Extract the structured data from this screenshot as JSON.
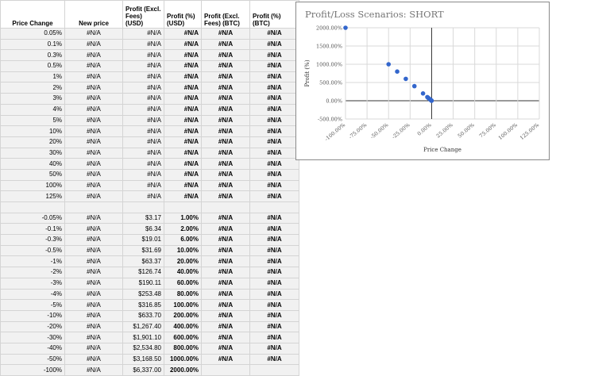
{
  "sheet": {
    "headers": [
      "Price Change",
      "New price",
      "Profit (Excl. Fees) (USD)",
      "Profit (%) (USD)",
      "Profit (Excl. Fees) (BTC)",
      "Profit (%) (BTC)"
    ],
    "rows": [
      [
        "0.05%",
        "#N/A",
        "#N/A",
        "#N/A",
        "#N/A",
        "#N/A"
      ],
      [
        "0.1%",
        "#N/A",
        "#N/A",
        "#N/A",
        "#N/A",
        "#N/A"
      ],
      [
        "0.3%",
        "#N/A",
        "#N/A",
        "#N/A",
        "#N/A",
        "#N/A"
      ],
      [
        "0.5%",
        "#N/A",
        "#N/A",
        "#N/A",
        "#N/A",
        "#N/A"
      ],
      [
        "1%",
        "#N/A",
        "#N/A",
        "#N/A",
        "#N/A",
        "#N/A"
      ],
      [
        "2%",
        "#N/A",
        "#N/A",
        "#N/A",
        "#N/A",
        "#N/A"
      ],
      [
        "3%",
        "#N/A",
        "#N/A",
        "#N/A",
        "#N/A",
        "#N/A"
      ],
      [
        "4%",
        "#N/A",
        "#N/A",
        "#N/A",
        "#N/A",
        "#N/A"
      ],
      [
        "5%",
        "#N/A",
        "#N/A",
        "#N/A",
        "#N/A",
        "#N/A"
      ],
      [
        "10%",
        "#N/A",
        "#N/A",
        "#N/A",
        "#N/A",
        "#N/A"
      ],
      [
        "20%",
        "#N/A",
        "#N/A",
        "#N/A",
        "#N/A",
        "#N/A"
      ],
      [
        "30%",
        "#N/A",
        "#N/A",
        "#N/A",
        "#N/A",
        "#N/A"
      ],
      [
        "40%",
        "#N/A",
        "#N/A",
        "#N/A",
        "#N/A",
        "#N/A"
      ],
      [
        "50%",
        "#N/A",
        "#N/A",
        "#N/A",
        "#N/A",
        "#N/A"
      ],
      [
        "100%",
        "#N/A",
        "#N/A",
        "#N/A",
        "#N/A",
        "#N/A"
      ],
      [
        "125%",
        "#N/A",
        "#N/A",
        "#N/A",
        "#N/A",
        "#N/A"
      ],
      [
        "",
        "",
        "",
        "",
        "",
        ""
      ],
      [
        "-0.05%",
        "#N/A",
        "$3.17",
        "1.00%",
        "#N/A",
        "#N/A"
      ],
      [
        "-0.1%",
        "#N/A",
        "$6.34",
        "2.00%",
        "#N/A",
        "#N/A"
      ],
      [
        "-0.3%",
        "#N/A",
        "$19.01",
        "6.00%",
        "#N/A",
        "#N/A"
      ],
      [
        "-0.5%",
        "#N/A",
        "$31.69",
        "10.00%",
        "#N/A",
        "#N/A"
      ],
      [
        "-1%",
        "#N/A",
        "$63.37",
        "20.00%",
        "#N/A",
        "#N/A"
      ],
      [
        "-2%",
        "#N/A",
        "$126.74",
        "40.00%",
        "#N/A",
        "#N/A"
      ],
      [
        "-3%",
        "#N/A",
        "$190.11",
        "60.00%",
        "#N/A",
        "#N/A"
      ],
      [
        "-4%",
        "#N/A",
        "$253.48",
        "80.00%",
        "#N/A",
        "#N/A"
      ],
      [
        "-5%",
        "#N/A",
        "$316.85",
        "100.00%",
        "#N/A",
        "#N/A"
      ],
      [
        "-10%",
        "#N/A",
        "$633.70",
        "200.00%",
        "#N/A",
        "#N/A"
      ],
      [
        "-20%",
        "#N/A",
        "$1,267.40",
        "400.00%",
        "#N/A",
        "#N/A"
      ],
      [
        "-30%",
        "#N/A",
        "$1,901.10",
        "600.00%",
        "#N/A",
        "#N/A"
      ],
      [
        "-40%",
        "#N/A",
        "$2,534.80",
        "800.00%",
        "#N/A",
        "#N/A"
      ],
      [
        "-50%",
        "#N/A",
        "$3,168.50",
        "1000.00%",
        "#N/A",
        "#N/A"
      ],
      [
        "-100%",
        "#N/A",
        "$6,337.00",
        "2000.00%",
        "",
        ""
      ]
    ],
    "colors": {
      "error": "#ff0000",
      "positive": "#00dd00",
      "grid": "#d4d4d4",
      "cell_bg": "#f1f1f1"
    }
  },
  "chart_data": {
    "type": "scatter",
    "title": "Profit/Loss Scenarios: SHORT",
    "xlabel": "Price Change",
    "ylabel": "Profit (%)",
    "xlim": [
      -100,
      125
    ],
    "ylim": [
      -500,
      2000
    ],
    "xticks": [
      "-100.00%",
      "-75.00%",
      "-50.00%",
      "-25.00%",
      "0.00%",
      "25.00%",
      "50.00%",
      "75.00%",
      "100.00%",
      "125.00%"
    ],
    "yticks": [
      "-500.00%",
      "0.00%",
      "500.00%",
      "1000.00%",
      "1500.00%",
      "2000.00%"
    ],
    "grid": true,
    "point_color": "#3366cc",
    "x": [
      -0.05,
      -0.1,
      -0.3,
      -0.5,
      -1,
      -2,
      -3,
      -4,
      -5,
      -10,
      -20,
      -30,
      -40,
      -50,
      -100
    ],
    "y": [
      1,
      2,
      6,
      10,
      20,
      40,
      60,
      80,
      100,
      200,
      400,
      600,
      800,
      1000,
      2000
    ]
  }
}
